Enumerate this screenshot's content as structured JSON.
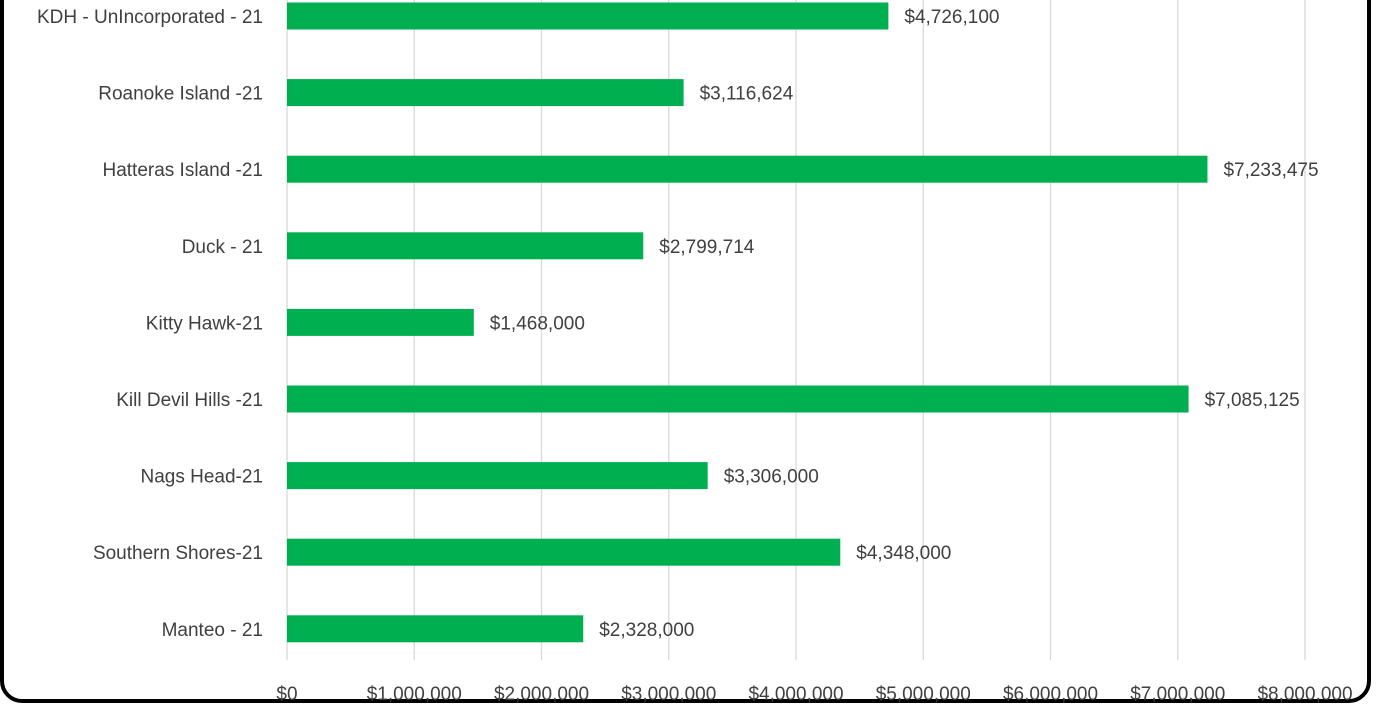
{
  "chart_data": {
    "type": "bar",
    "orientation": "horizontal",
    "categories": [
      "KDH - UnIncorporated - 21",
      "Roanoke Island -21",
      "Hatteras Island -21",
      "Duck - 21",
      "Kitty Hawk-21",
      "Kill Devil Hills -21",
      "Nags Head-21",
      "Southern Shores-21",
      "Manteo - 21"
    ],
    "values": [
      4726100,
      3116624,
      7233475,
      2799714,
      1468000,
      7085125,
      3306000,
      4348000,
      2328000
    ],
    "value_labels": [
      "$4,726,100",
      "$3,116,624",
      "$7,233,475",
      "$2,799,714",
      "$1,468,000",
      "$7,085,125",
      "$3,306,000",
      "$4,348,000",
      "$2,328,000"
    ],
    "x_ticks": [
      0,
      1000000,
      2000000,
      3000000,
      4000000,
      5000000,
      6000000,
      7000000,
      8000000
    ],
    "x_tick_labels": [
      "$0",
      "$1,000,000",
      "$2,000,000",
      "$3,000,000",
      "$4,000,000",
      "$5,000,000",
      "$6,000,000",
      "$7,000,000",
      "$8,000,000"
    ],
    "xlim": [
      0,
      8000000
    ],
    "title": "",
    "xlabel": "",
    "ylabel": "",
    "grid": "vertical",
    "legend": "none",
    "bar_color": "#00b050",
    "grid_color": "#d9d9d9",
    "text_color": "#404040"
  }
}
